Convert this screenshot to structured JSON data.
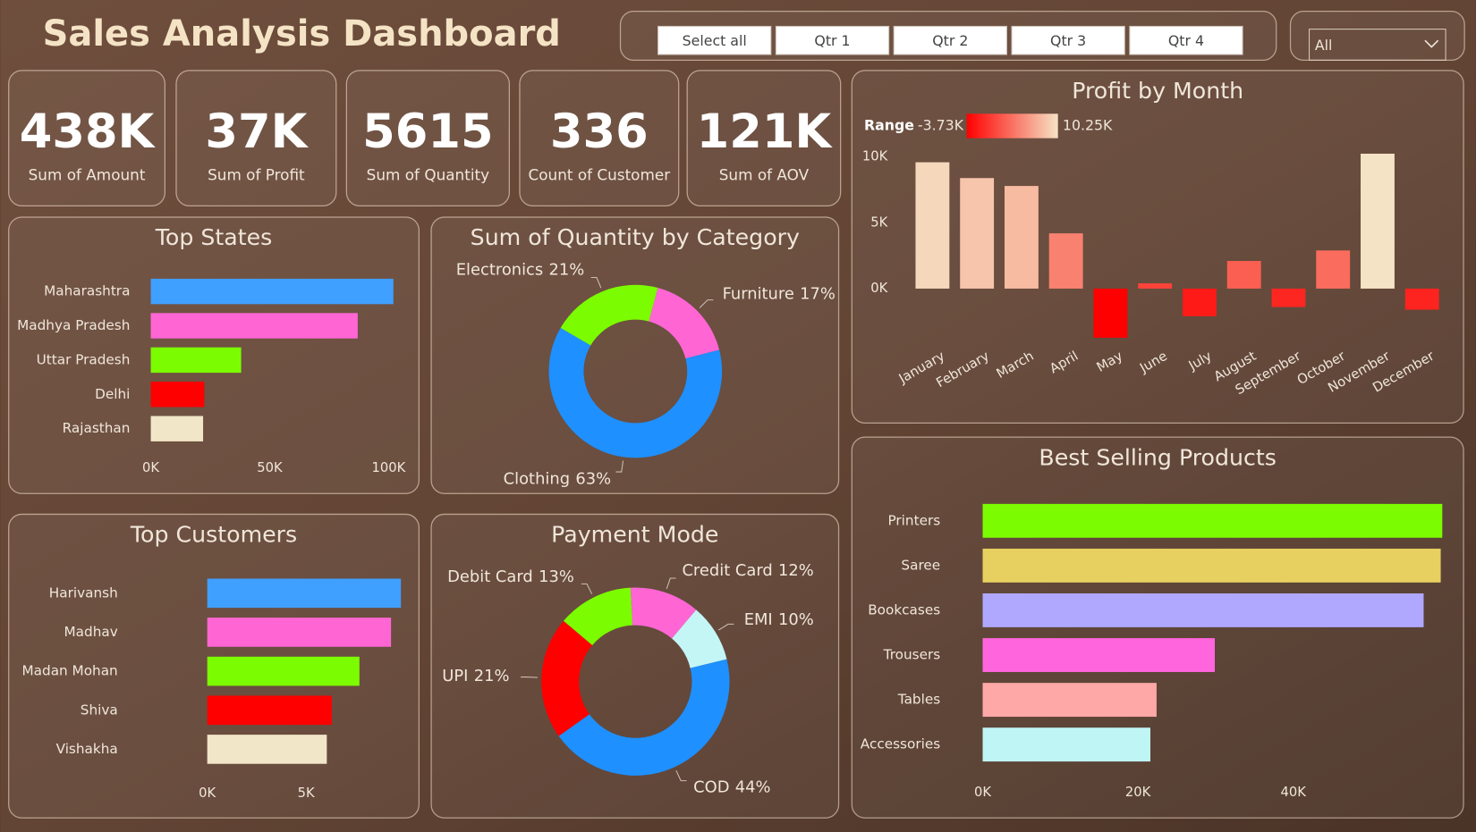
{
  "header": {
    "title": "Sales Analysis Dashboard"
  },
  "slicer": {
    "buttons": [
      "Select all",
      "Qtr 1",
      "Qtr 2",
      "Qtr 3",
      "Qtr 4"
    ],
    "dropdown": "All"
  },
  "kpis": [
    {
      "value": "438K",
      "label": "Sum of Amount"
    },
    {
      "value": "37K",
      "label": "Sum of Profit"
    },
    {
      "value": "5615",
      "label": "Sum of Quantity"
    },
    {
      "value": "336",
      "label": "Count of Customer"
    },
    {
      "value": "121K",
      "label": "Sum of AOV"
    }
  ],
  "chart_data": [
    {
      "type": "hbar",
      "title": "Top States",
      "categories": [
        "Maharashtra",
        "Madhya Pradesh",
        "Uttar Pradesh",
        "Delhi",
        "Rajasthan"
      ],
      "values": [
        102000,
        87000,
        38000,
        22500,
        22000
      ],
      "colors": [
        "#3fa0ff",
        "#ff66d4",
        "#7cfc00",
        "#ff0000",
        "#f2e6c8"
      ],
      "xlim": [
        0,
        110000
      ],
      "xticks": [
        {
          "value": 0,
          "label": "0K"
        },
        {
          "value": 50000,
          "label": "50K"
        },
        {
          "value": 100000,
          "label": "100K"
        }
      ]
    },
    {
      "type": "donut",
      "title": "Sum of Quantity by Category",
      "categories": [
        "Furniture",
        "Clothing",
        "Electronics"
      ],
      "values": [
        17,
        63,
        21
      ],
      "value_labels": [
        "17%",
        "63%",
        "21%"
      ],
      "colors": [
        "#ff66d4",
        "#1e90ff",
        "#7cfc00"
      ]
    },
    {
      "type": "column",
      "title": "Profit by Month",
      "categories": [
        "January",
        "February",
        "March",
        "April",
        "May",
        "June",
        "July",
        "August",
        "September",
        "October",
        "November",
        "December"
      ],
      "values": [
        9600,
        8400,
        7800,
        4200,
        -3730,
        400,
        -2100,
        2100,
        -1400,
        2900,
        10250,
        -1600
      ],
      "ylim": [
        -4500,
        11000
      ],
      "yticks": [
        {
          "value": 0,
          "label": "0K"
        },
        {
          "value": 5000,
          "label": "5K"
        },
        {
          "value": 10000,
          "label": "10K"
        }
      ],
      "color_scale": {
        "label": "Range",
        "min": {
          "value": -3730,
          "label": "-3.73K"
        },
        "max": {
          "value": 10250,
          "label": "10.25K"
        },
        "colors": [
          "#ff0000",
          "#f5e3c5"
        ]
      }
    },
    {
      "type": "hbar",
      "title": "Top Customers",
      "categories": [
        "Harivansh",
        "Madhav",
        "Madan Mohan",
        "Shiva",
        "Vishakha"
      ],
      "values": [
        9800,
        9300,
        7700,
        6300,
        6050
      ],
      "colors": [
        "#3fa0ff",
        "#ff66d4",
        "#7cfc00",
        "#ff0000",
        "#f2e6c8"
      ],
      "xlim": [
        0,
        10000
      ],
      "xticks": [
        {
          "value": 0,
          "label": "0K"
        },
        {
          "value": 5000,
          "label": "5K"
        }
      ]
    },
    {
      "type": "donut",
      "title": "Payment Mode",
      "categories": [
        "Credit Card",
        "EMI",
        "COD",
        "UPI",
        "Debit Card"
      ],
      "values": [
        12,
        10,
        44,
        21,
        13
      ],
      "value_labels": [
        "12%",
        "10%",
        "44%",
        "21%",
        "13%"
      ],
      "colors": [
        "#ff66d4",
        "#c4f6f6",
        "#1e90ff",
        "#ff0000",
        "#7cfc00"
      ]
    },
    {
      "type": "hbar",
      "title": "Best Selling Products",
      "categories": [
        "Printers",
        "Saree",
        "Bookcases",
        "Trousers",
        "Tables",
        "Accessories"
      ],
      "values": [
        59200,
        59000,
        56800,
        29900,
        22400,
        21600
      ],
      "colors": [
        "#7cfc00",
        "#e8d060",
        "#b0a8ff",
        "#ff66dd",
        "#ffa8a8",
        "#c0f5f5"
      ],
      "xlim": [
        0,
        60000
      ],
      "xticks": [
        {
          "value": 0,
          "label": "0K"
        },
        {
          "value": 20000,
          "label": "20K"
        },
        {
          "value": 40000,
          "label": "40K"
        }
      ]
    }
  ]
}
